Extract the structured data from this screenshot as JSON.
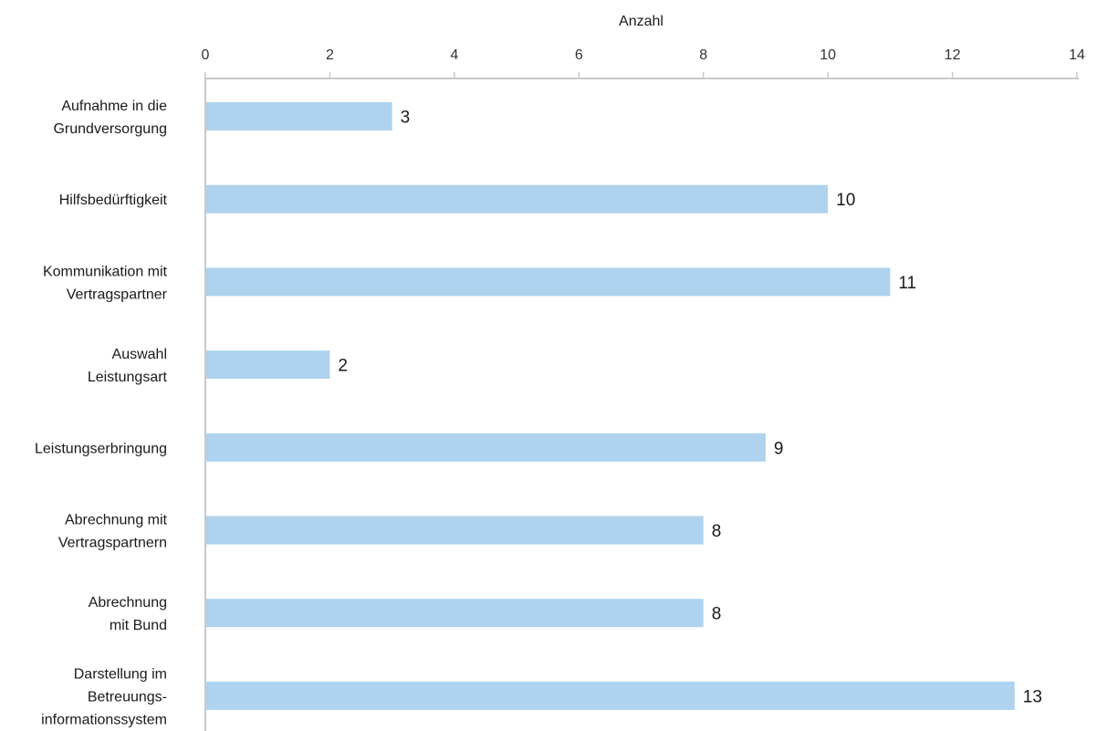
{
  "chart_data": {
    "type": "bar",
    "orientation": "horizontal",
    "xlabel": "Anzahl",
    "xlim": [
      0,
      14
    ],
    "x_ticks": [
      0,
      2,
      4,
      6,
      8,
      10,
      12,
      14
    ],
    "x_axis_position": "top",
    "categories": [
      "Aufnahme in die\nGrundversorgung",
      "Hilfsbedürftigkeit",
      "Kommunikation mit\nVertragspartner",
      "Auswahl\nLeistungsart",
      "Leistungserbringung",
      "Abrechnung mit\nVertragspartnern",
      "Abrechnung\nmit Bund",
      "Darstellung im\nBetreuungs-\ninformationssystem"
    ],
    "values": [
      3,
      10,
      11,
      2,
      9,
      8,
      8,
      13
    ],
    "data_labels": [
      "3",
      "10",
      "11",
      "2",
      "9",
      "8",
      "8",
      "13"
    ],
    "bar_color": "#afd3ee",
    "axis_color": "#c9c9c9",
    "grid": false,
    "legend": "none"
  }
}
